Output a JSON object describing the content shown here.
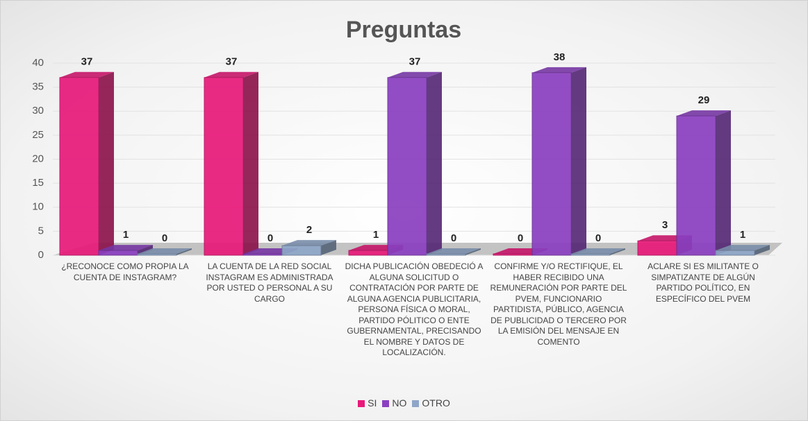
{
  "chart_data": {
    "type": "bar3d",
    "title": "Preguntas",
    "categories": [
      "¿RECONOCE COMO PROPIA LA CUENTA DE INSTAGRAM?",
      "LA CUENTA DE LA RED SOCIAL INSTAGRAM ES ADMINISTRADA POR USTED O PERSONAL A SU CARGO",
      "DICHA PUBLICACIÓN OBEDECIÓ A ALGUNA SOLICITUD O CONTRATACIÓN POR PARTE DE ALGUNA AGENCIA PUBLICITARIA, PERSONA FÍSICA O MORAL, PARTIDO PÓLITICO O ENTE GUBERNAMENTAL, PRECISANDO EL NOMBRE Y DATOS DE LOCALIZACIÓN.",
      "CONFIRME Y/O RECTIFIQUE, EL HABER RECIBIDO UNA REMUNERACIÓN POR PARTE DEL PVEM, FUNCIONARIO PARTIDISTA, PÚBLICO, AGENCIA DE PUBLICIDAD O TERCERO POR LA EMISIÓN DEL MENSAJE EN COMENTO",
      "ACLARE SI ES MILITANTE O SIMPATIZANTE DE ALGÚN PARTIDO POLÍTICO, EN ESPECÍFICO DEL PVEM"
    ],
    "series": [
      {
        "name": "SI",
        "color": "#e8197a",
        "values": [
          37,
          37,
          1,
          0,
          3
        ]
      },
      {
        "name": "NO",
        "color": "#8a3fc0",
        "values": [
          1,
          0,
          37,
          38,
          29
        ]
      },
      {
        "name": "OTRO",
        "color": "#8ea6c8",
        "values": [
          0,
          2,
          0,
          0,
          1
        ]
      }
    ],
    "ylim": [
      0,
      40
    ],
    "yticks": [
      0,
      5,
      10,
      15,
      20,
      25,
      30,
      35,
      40
    ],
    "grid": true,
    "legend": "bottom"
  }
}
